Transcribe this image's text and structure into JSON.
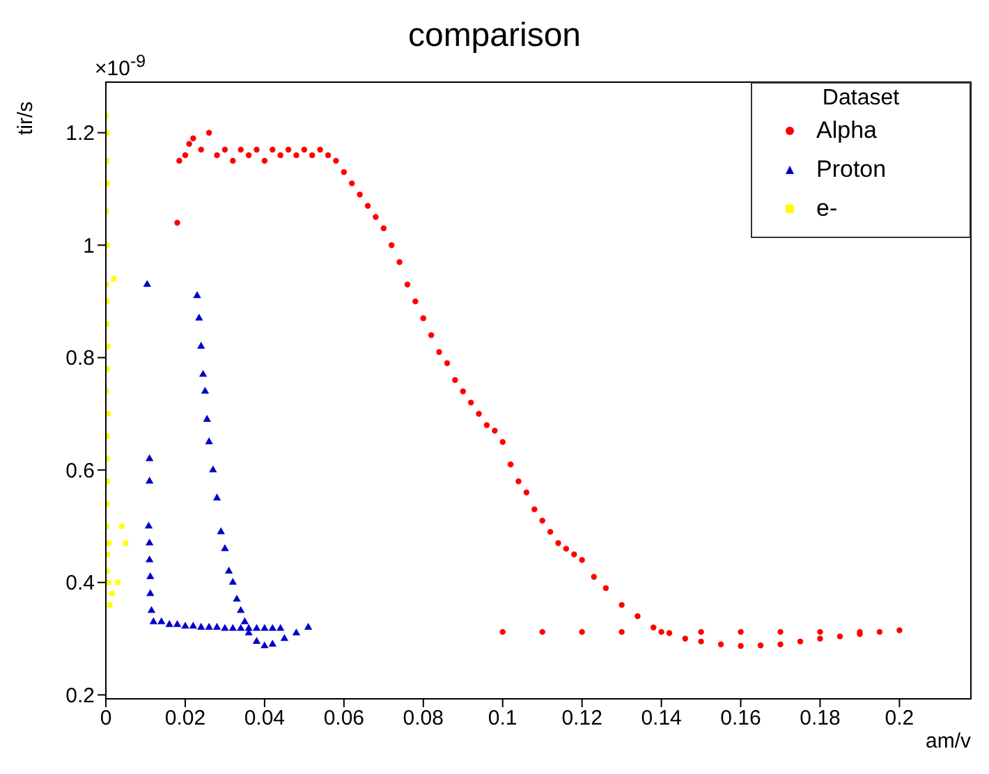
{
  "chart_data": {
    "type": "scatter",
    "title": "comparison",
    "xlabel": "am/v",
    "ylabel": "tir/s",
    "legend_title": "Dataset",
    "annotations": [
      "×10$^{-9}$"
    ],
    "xlim": [
      0,
      0.218
    ],
    "xticks": [
      0,
      0.02,
      0.04,
      0.06,
      0.08,
      0.1,
      0.12,
      0.14,
      0.16,
      0.18,
      0.2
    ],
    "ylim": [
      0.193,
      1.29
    ],
    "yticks": [
      0.2,
      0.4,
      0.6,
      0.8,
      1,
      1.2
    ],
    "legend": "top right",
    "series": [
      {
        "name": "Alpha",
        "color": "#ff0000",
        "marker": "circle",
        "x": [
          0.018,
          0.0185,
          0.02,
          0.021,
          0.022,
          0.024,
          0.026,
          0.028,
          0.03,
          0.032,
          0.034,
          0.036,
          0.038,
          0.04,
          0.042,
          0.044,
          0.046,
          0.048,
          0.05,
          0.052,
          0.054,
          0.056,
          0.058,
          0.06,
          0.062,
          0.064,
          0.066,
          0.068,
          0.07,
          0.072,
          0.074,
          0.076,
          0.078,
          0.08,
          0.082,
          0.084,
          0.086,
          0.088,
          0.09,
          0.092,
          0.094,
          0.096,
          0.098,
          0.1,
          0.102,
          0.104,
          0.106,
          0.108,
          0.11,
          0.112,
          0.114,
          0.116,
          0.118,
          0.12,
          0.123,
          0.126,
          0.13,
          0.134,
          0.138,
          0.142,
          0.146,
          0.15,
          0.155,
          0.16,
          0.165,
          0.17,
          0.175,
          0.18,
          0.185,
          0.19,
          0.195,
          0.2,
          0.1,
          0.11,
          0.12,
          0.13,
          0.14,
          0.15,
          0.16,
          0.17,
          0.18,
          0.19
        ],
        "values": [
          1.04,
          1.15,
          1.16,
          1.18,
          1.19,
          1.17,
          1.2,
          1.16,
          1.17,
          1.15,
          1.17,
          1.16,
          1.17,
          1.15,
          1.17,
          1.16,
          1.17,
          1.16,
          1.17,
          1.16,
          1.17,
          1.16,
          1.15,
          1.13,
          1.11,
          1.09,
          1.07,
          1.05,
          1.03,
          1.0,
          0.97,
          0.93,
          0.9,
          0.87,
          0.84,
          0.81,
          0.79,
          0.76,
          0.74,
          0.72,
          0.7,
          0.68,
          0.67,
          0.65,
          0.61,
          0.58,
          0.56,
          0.53,
          0.51,
          0.49,
          0.47,
          0.46,
          0.45,
          0.44,
          0.41,
          0.39,
          0.36,
          0.34,
          0.32,
          0.31,
          0.3,
          0.295,
          0.29,
          0.287,
          0.288,
          0.29,
          0.295,
          0.3,
          0.304,
          0.308,
          0.312,
          0.315,
          0.312,
          0.312,
          0.312,
          0.312,
          0.312,
          0.312,
          0.312,
          0.312,
          0.312,
          0.312
        ]
      },
      {
        "name": "Proton",
        "color": "#0000cc",
        "marker": "triangle",
        "x": [
          0.0104,
          0.011,
          0.011,
          0.0108,
          0.011,
          0.011,
          0.0112,
          0.0112,
          0.0115,
          0.012,
          0.014,
          0.016,
          0.018,
          0.02,
          0.022,
          0.024,
          0.026,
          0.028,
          0.03,
          0.032,
          0.034,
          0.036,
          0.038,
          0.04,
          0.042,
          0.044,
          0.023,
          0.0235,
          0.024,
          0.0245,
          0.025,
          0.0255,
          0.026,
          0.027,
          0.028,
          0.029,
          0.03,
          0.031,
          0.032,
          0.033,
          0.034,
          0.035,
          0.036,
          0.038,
          0.04,
          0.042,
          0.045,
          0.048,
          0.051
        ],
        "values": [
          0.93,
          0.62,
          0.58,
          0.5,
          0.47,
          0.44,
          0.41,
          0.38,
          0.35,
          0.33,
          0.33,
          0.325,
          0.325,
          0.322,
          0.322,
          0.32,
          0.32,
          0.32,
          0.318,
          0.318,
          0.318,
          0.318,
          0.318,
          0.318,
          0.318,
          0.318,
          0.91,
          0.87,
          0.82,
          0.77,
          0.74,
          0.69,
          0.65,
          0.6,
          0.55,
          0.49,
          0.46,
          0.42,
          0.4,
          0.37,
          0.35,
          0.33,
          0.31,
          0.295,
          0.287,
          0.29,
          0.3,
          0.31,
          0.32
        ]
      },
      {
        "name": "e-",
        "color": "#ffff00",
        "marker": "square",
        "x": [
          0,
          0.0003,
          0.0002,
          0.0004,
          0.0001,
          0.0003,
          0.0001,
          0.002,
          0.0003,
          0.0002,
          0.0005,
          0.0004,
          0.0001,
          0.0006,
          0.0003,
          0.0002,
          0.0004,
          0.0003,
          0.0002,
          0.0008,
          0.0004,
          0.0002,
          0.0006,
          0.0015,
          0.001,
          0.004,
          0.005,
          0.003
        ],
        "values": [
          1.23,
          1.2,
          1.15,
          1.11,
          1.06,
          1.0,
          0.93,
          0.94,
          0.9,
          0.86,
          0.82,
          0.78,
          0.74,
          0.7,
          0.66,
          0.62,
          0.58,
          0.54,
          0.5,
          0.47,
          0.45,
          0.42,
          0.4,
          0.38,
          0.36,
          0.5,
          0.47,
          0.4
        ]
      }
    ]
  }
}
